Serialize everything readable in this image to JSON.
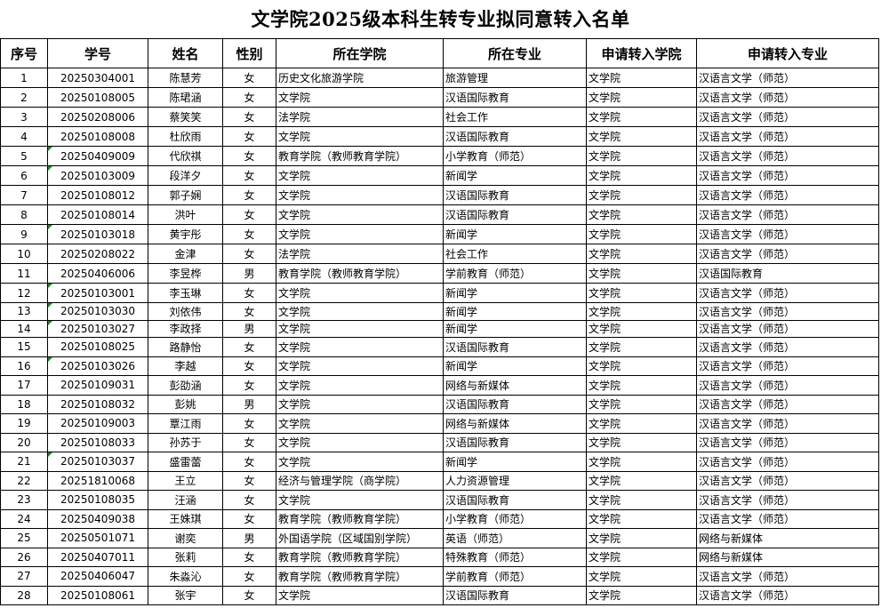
{
  "title": "文学院2025级本科生转专业拟同意转入名单",
  "headers": [
    "序号",
    "学号",
    "姓名",
    "性别",
    "所在学院",
    "所在专业",
    "申请转入学院",
    "申请转入专业"
  ],
  "flag_color": "#1e8a1e",
  "rows": [
    {
      "no": "1",
      "id": "20250304001",
      "name": "陈慧芳",
      "gender": "女",
      "college": "历史文化旅游学院",
      "major": "旅游管理",
      "to_college": "文学院",
      "to_major": "汉语言文学（师范）",
      "flag": false
    },
    {
      "no": "2",
      "id": "20250108005",
      "name": "陈珺涵",
      "gender": "女",
      "college": "文学院",
      "major": "汉语国际教育",
      "to_college": "文学院",
      "to_major": "汉语言文学（师范）",
      "flag": false
    },
    {
      "no": "3",
      "id": "20250208006",
      "name": "蔡笑笑",
      "gender": "女",
      "college": "法学院",
      "major": "社会工作",
      "to_college": "文学院",
      "to_major": "汉语言文学（师范）",
      "flag": false
    },
    {
      "no": "4",
      "id": "20250108008",
      "name": "杜欣雨",
      "gender": "女",
      "college": "文学院",
      "major": "汉语国际教育",
      "to_college": "文学院",
      "to_major": "汉语言文学（师范）",
      "flag": false
    },
    {
      "no": "5",
      "id": "20250409009",
      "name": "代欣祺",
      "gender": "女",
      "college": "教育学院（教师教育学院）",
      "major": "小学教育（师范）",
      "to_college": "文学院",
      "to_major": "汉语言文学（师范）",
      "flag": true
    },
    {
      "no": "6",
      "id": "20250103009",
      "name": "段洋夕",
      "gender": "女",
      "college": "文学院",
      "major": "新闻学",
      "to_college": "文学院",
      "to_major": "汉语言文学（师范）",
      "flag": true
    },
    {
      "no": "7",
      "id": "20250108012",
      "name": "郭子娴",
      "gender": "女",
      "college": "文学院",
      "major": "汉语国际教育",
      "to_college": "文学院",
      "to_major": "汉语言文学（师范）",
      "flag": false
    },
    {
      "no": "8",
      "id": "20250108014",
      "name": "洪叶",
      "gender": "女",
      "college": "文学院",
      "major": "汉语国际教育",
      "to_college": "文学院",
      "to_major": "汉语言文学（师范）",
      "flag": false
    },
    {
      "no": "9",
      "id": "20250103018",
      "name": "黄宇彤",
      "gender": "女",
      "college": "文学院",
      "major": "新闻学",
      "to_college": "文学院",
      "to_major": "汉语言文学（师范）",
      "flag": true
    },
    {
      "no": "10",
      "id": "20250208022",
      "name": "金津",
      "gender": "女",
      "college": "法学院",
      "major": "社会工作",
      "to_college": "文学院",
      "to_major": "汉语言文学（师范）",
      "flag": false
    },
    {
      "no": "11",
      "id": "20250406006",
      "name": "李昱桦",
      "gender": "男",
      "college": "教育学院（教师教育学院）",
      "major": "学前教育（师范）",
      "to_college": "文学院",
      "to_major": "汉语国际教育",
      "flag": false
    },
    {
      "no": "12",
      "id": "20250103001",
      "name": "李玉琳",
      "gender": "女",
      "college": "文学院",
      "major": "新闻学",
      "to_college": "文学院",
      "to_major": "汉语言文学（师范）",
      "flag": true
    },
    {
      "no": "13",
      "id": "20250103030",
      "name": "刘依伟",
      "gender": "女",
      "college": "文学院",
      "major": "新闻学",
      "to_college": "文学院",
      "to_major": "汉语言文学（师范）",
      "flag": true
    },
    {
      "no": "14",
      "id": "20250103027",
      "name": "李政择",
      "gender": "男",
      "college": "文学院",
      "major": "新闻学",
      "to_college": "文学院",
      "to_major": "汉语言文学（师范）",
      "flag": true
    },
    {
      "no": "15",
      "id": "20250108025",
      "name": "路静怡",
      "gender": "女",
      "college": "文学院",
      "major": "汉语国际教育",
      "to_college": "文学院",
      "to_major": "汉语言文学（师范）",
      "flag": false
    },
    {
      "no": "16",
      "id": "20250103026",
      "name": "李越",
      "gender": "女",
      "college": "文学院",
      "major": "新闻学",
      "to_college": "文学院",
      "to_major": "汉语言文学（师范）",
      "flag": true
    },
    {
      "no": "17",
      "id": "20250109031",
      "name": "彭劭涵",
      "gender": "女",
      "college": "文学院",
      "major": "网络与新媒体",
      "to_college": "文学院",
      "to_major": "汉语言文学（师范）",
      "flag": false
    },
    {
      "no": "18",
      "id": "20250108032",
      "name": "彭姚",
      "gender": "男",
      "college": "文学院",
      "major": "汉语国际教育",
      "to_college": "文学院",
      "to_major": "汉语言文学（师范）",
      "flag": false
    },
    {
      "no": "19",
      "id": "20250109003",
      "name": "覃江雨",
      "gender": "女",
      "college": "文学院",
      "major": "网络与新媒体",
      "to_college": "文学院",
      "to_major": "汉语言文学（师范）",
      "flag": false
    },
    {
      "no": "20",
      "id": "20250108033",
      "name": "孙苏于",
      "gender": "女",
      "college": "文学院",
      "major": "汉语国际教育",
      "to_college": "文学院",
      "to_major": "汉语言文学（师范）",
      "flag": false
    },
    {
      "no": "21",
      "id": "20250103037",
      "name": "盛雷蕾",
      "gender": "女",
      "college": "文学院",
      "major": "新闻学",
      "to_college": "文学院",
      "to_major": "汉语言文学（师范）",
      "flag": true
    },
    {
      "no": "22",
      "id": "20251810068",
      "name": "王立",
      "gender": "女",
      "college": "经济与管理学院（商学院）",
      "major": "人力资源管理",
      "to_college": "文学院",
      "to_major": "汉语言文学（师范）",
      "flag": false
    },
    {
      "no": "23",
      "id": "20250108035",
      "name": "汪涵",
      "gender": "女",
      "college": "文学院",
      "major": "汉语国际教育",
      "to_college": "文学院",
      "to_major": "汉语言文学（师范）",
      "flag": false
    },
    {
      "no": "24",
      "id": "20250409038",
      "name": "王姝琪",
      "gender": "女",
      "college": "教育学院（教师教育学院）",
      "major": "小学教育（师范）",
      "to_college": "文学院",
      "to_major": "汉语言文学（师范）",
      "flag": false
    },
    {
      "no": "25",
      "id": "20250501071",
      "name": "谢奕",
      "gender": "男",
      "college": "外国语学院（区域国别学院）",
      "major": "英语（师范）",
      "to_college": "文学院",
      "to_major": "网络与新媒体",
      "flag": false
    },
    {
      "no": "26",
      "id": "20250407011",
      "name": "张莉",
      "gender": "女",
      "college": "教育学院（教师教育学院）",
      "major": "特殊教育（师范）",
      "to_college": "文学院",
      "to_major": "网络与新媒体",
      "flag": false
    },
    {
      "no": "27",
      "id": "20250406047",
      "name": "朱淼沁",
      "gender": "女",
      "college": "教育学院（教师教育学院）",
      "major": "学前教育（师范）",
      "to_college": "文学院",
      "to_major": "汉语言文学（师范）",
      "flag": false
    },
    {
      "no": "28",
      "id": "20250108061",
      "name": "张宇",
      "gender": "女",
      "college": "文学院",
      "major": "汉语国际教育",
      "to_college": "文学院",
      "to_major": "汉语言文学（师范）",
      "flag": false
    }
  ]
}
